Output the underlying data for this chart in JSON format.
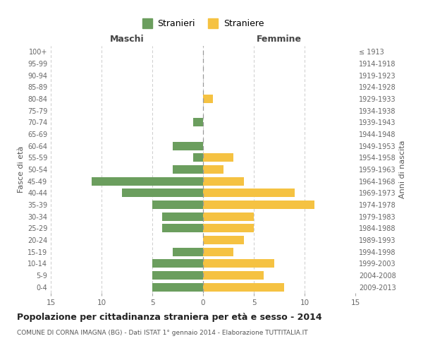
{
  "age_groups": [
    "0-4",
    "5-9",
    "10-14",
    "15-19",
    "20-24",
    "25-29",
    "30-34",
    "35-39",
    "40-44",
    "45-49",
    "50-54",
    "55-59",
    "60-64",
    "65-69",
    "70-74",
    "75-79",
    "80-84",
    "85-89",
    "90-94",
    "95-99",
    "100+"
  ],
  "birth_years": [
    "2009-2013",
    "2004-2008",
    "1999-2003",
    "1994-1998",
    "1989-1993",
    "1984-1988",
    "1979-1983",
    "1974-1978",
    "1969-1973",
    "1964-1968",
    "1959-1963",
    "1954-1958",
    "1949-1953",
    "1944-1948",
    "1939-1943",
    "1934-1938",
    "1929-1933",
    "1924-1928",
    "1919-1923",
    "1914-1918",
    "≤ 1913"
  ],
  "maschi": [
    5,
    5,
    5,
    3,
    0,
    4,
    4,
    5,
    8,
    11,
    3,
    1,
    3,
    0,
    1,
    0,
    0,
    0,
    0,
    0,
    0
  ],
  "femmine": [
    8,
    6,
    7,
    3,
    4,
    5,
    5,
    11,
    9,
    4,
    2,
    3,
    0,
    0,
    0,
    0,
    1,
    0,
    0,
    0,
    0
  ],
  "maschi_color": "#6b9e5e",
  "femmine_color": "#f5c242",
  "title": "Popolazione per cittadinanza straniera per età e sesso - 2014",
  "subtitle": "COMUNE DI CORNA IMAGNA (BG) - Dati ISTAT 1° gennaio 2014 - Elaborazione TUTTITALIA.IT",
  "xlabel_left": "Maschi",
  "xlabel_right": "Femmine",
  "ylabel_left": "Fasce di età",
  "ylabel_right": "Anni di nascita",
  "legend_maschi": "Stranieri",
  "legend_femmine": "Straniere",
  "xlim": 15,
  "background_color": "#ffffff",
  "grid_color": "#cccccc"
}
